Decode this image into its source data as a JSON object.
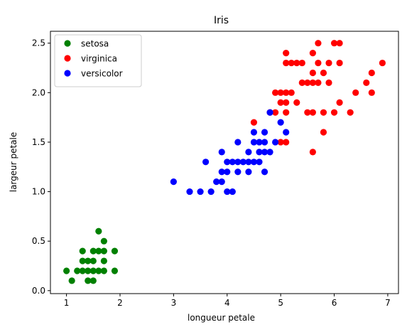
{
  "chart_data": {
    "type": "scatter",
    "title": "Iris",
    "xlabel": "longueur petale",
    "ylabel": "largeur petale",
    "xlim": [
      0.7,
      7.2
    ],
    "ylim": [
      -0.03,
      2.62
    ],
    "xticks": [
      1,
      2,
      3,
      4,
      5,
      6,
      7
    ],
    "xtick_labels": [
      "1",
      "2",
      "3",
      "4",
      "5",
      "6",
      "7"
    ],
    "yticks": [
      0.0,
      0.5,
      1.0,
      1.5,
      2.0,
      2.5
    ],
    "ytick_labels": [
      "0.0",
      "0.5",
      "1.0",
      "1.5",
      "2.0",
      "2.5"
    ],
    "grid": false,
    "legend_position": "top-left",
    "series": [
      {
        "name": "setosa",
        "color": "#008000",
        "points": [
          [
            1.0,
            0.2
          ],
          [
            1.1,
            0.1
          ],
          [
            1.2,
            0.2
          ],
          [
            1.3,
            0.2
          ],
          [
            1.3,
            0.3
          ],
          [
            1.3,
            0.4
          ],
          [
            1.4,
            0.1
          ],
          [
            1.4,
            0.2
          ],
          [
            1.4,
            0.3
          ],
          [
            1.5,
            0.1
          ],
          [
            1.5,
            0.2
          ],
          [
            1.5,
            0.3
          ],
          [
            1.5,
            0.4
          ],
          [
            1.6,
            0.2
          ],
          [
            1.6,
            0.4
          ],
          [
            1.6,
            0.6
          ],
          [
            1.7,
            0.2
          ],
          [
            1.7,
            0.3
          ],
          [
            1.7,
            0.4
          ],
          [
            1.7,
            0.5
          ],
          [
            1.9,
            0.2
          ],
          [
            1.9,
            0.4
          ]
        ]
      },
      {
        "name": "virginica",
        "color": "#ff0000",
        "points": [
          [
            4.5,
            1.7
          ],
          [
            4.8,
            1.8
          ],
          [
            4.9,
            1.8
          ],
          [
            4.9,
            2.0
          ],
          [
            5.0,
            1.5
          ],
          [
            5.0,
            1.9
          ],
          [
            5.0,
            2.0
          ],
          [
            5.1,
            1.5
          ],
          [
            5.1,
            1.8
          ],
          [
            5.1,
            1.9
          ],
          [
            5.1,
            2.0
          ],
          [
            5.1,
            2.3
          ],
          [
            5.1,
            2.4
          ],
          [
            5.2,
            2.0
          ],
          [
            5.2,
            2.3
          ],
          [
            5.3,
            1.9
          ],
          [
            5.3,
            2.3
          ],
          [
            5.4,
            2.1
          ],
          [
            5.4,
            2.3
          ],
          [
            5.5,
            1.8
          ],
          [
            5.5,
            2.1
          ],
          [
            5.6,
            1.4
          ],
          [
            5.6,
            1.8
          ],
          [
            5.6,
            2.1
          ],
          [
            5.6,
            2.2
          ],
          [
            5.6,
            2.4
          ],
          [
            5.7,
            2.1
          ],
          [
            5.7,
            2.3
          ],
          [
            5.7,
            2.5
          ],
          [
            5.8,
            1.6
          ],
          [
            5.8,
            1.8
          ],
          [
            5.8,
            2.2
          ],
          [
            5.9,
            2.1
          ],
          [
            5.9,
            2.3
          ],
          [
            6.0,
            1.8
          ],
          [
            6.0,
            2.5
          ],
          [
            6.1,
            1.9
          ],
          [
            6.1,
            2.3
          ],
          [
            6.1,
            2.5
          ],
          [
            6.3,
            1.8
          ],
          [
            6.4,
            2.0
          ],
          [
            6.6,
            2.1
          ],
          [
            6.7,
            2.0
          ],
          [
            6.7,
            2.2
          ],
          [
            6.9,
            2.3
          ]
        ]
      },
      {
        "name": "versicolor",
        "color": "#0000ff",
        "points": [
          [
            3.0,
            1.1
          ],
          [
            3.3,
            1.0
          ],
          [
            3.5,
            1.0
          ],
          [
            3.6,
            1.3
          ],
          [
            3.7,
            1.0
          ],
          [
            3.8,
            1.1
          ],
          [
            3.9,
            1.1
          ],
          [
            3.9,
            1.2
          ],
          [
            3.9,
            1.4
          ],
          [
            4.0,
            1.0
          ],
          [
            4.0,
            1.2
          ],
          [
            4.0,
            1.3
          ],
          [
            4.1,
            1.0
          ],
          [
            4.1,
            1.3
          ],
          [
            4.2,
            1.2
          ],
          [
            4.2,
            1.3
          ],
          [
            4.2,
            1.5
          ],
          [
            4.3,
            1.3
          ],
          [
            4.4,
            1.2
          ],
          [
            4.4,
            1.3
          ],
          [
            4.4,
            1.4
          ],
          [
            4.5,
            1.3
          ],
          [
            4.5,
            1.5
          ],
          [
            4.5,
            1.6
          ],
          [
            4.6,
            1.3
          ],
          [
            4.6,
            1.4
          ],
          [
            4.6,
            1.5
          ],
          [
            4.7,
            1.2
          ],
          [
            4.7,
            1.4
          ],
          [
            4.7,
            1.5
          ],
          [
            4.7,
            1.6
          ],
          [
            4.8,
            1.4
          ],
          [
            4.8,
            1.8
          ],
          [
            4.9,
            1.5
          ],
          [
            5.0,
            1.7
          ],
          [
            5.1,
            1.6
          ]
        ]
      }
    ]
  }
}
